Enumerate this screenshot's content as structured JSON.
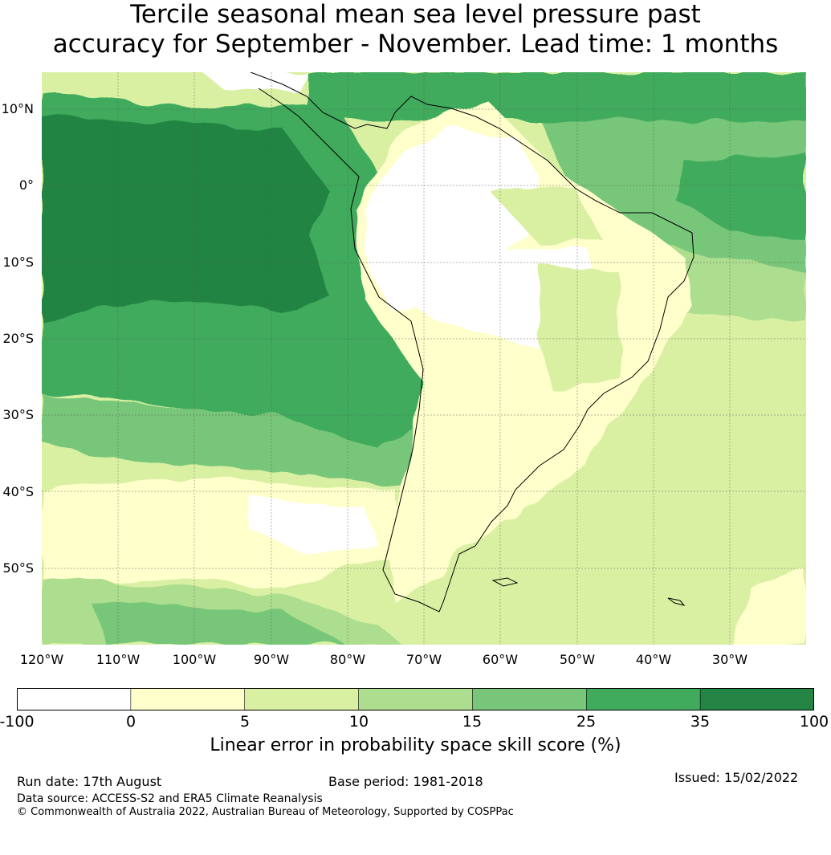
{
  "title": {
    "line1": "Tercile seasonal mean sea level pressure past",
    "line2": "accuracy for September - November. Lead time: 1 months"
  },
  "map": {
    "region": "South America",
    "latitude_labels": [
      "10°N",
      "0°",
      "10°S",
      "20°S",
      "30°S",
      "40°S",
      "50°S"
    ],
    "longitude_labels": [
      "120°W",
      "110°W",
      "100°W",
      "90°W",
      "80°W",
      "70°W",
      "60°W",
      "50°W",
      "40°W",
      "30°W"
    ],
    "extent": {
      "lon_min": -120,
      "lon_max": -20,
      "lat_min": -60,
      "lat_max": 15
    }
  },
  "colorbar": {
    "boundaries": [
      "-100",
      "0",
      "5",
      "10",
      "15",
      "25",
      "35",
      "100"
    ],
    "colors": [
      "#ffffff",
      "#ffffcc",
      "#d9f0a3",
      "#addd8e",
      "#78c679",
      "#41ab5d",
      "#238443"
    ],
    "label": "Linear error in probability space skill score (%)"
  },
  "footer": {
    "run_date": "Run date: 17th August",
    "base_period": "Base period: 1981-2018",
    "issued": "Issued: 15/02/2022",
    "data_source": "Data source: ACCESS-S2 and ERA5 Climate Reanalysis",
    "copyright": "© Commonwealth of Australia 2022, Australian Bureau of Meteorology, Supported by COSPPac"
  }
}
